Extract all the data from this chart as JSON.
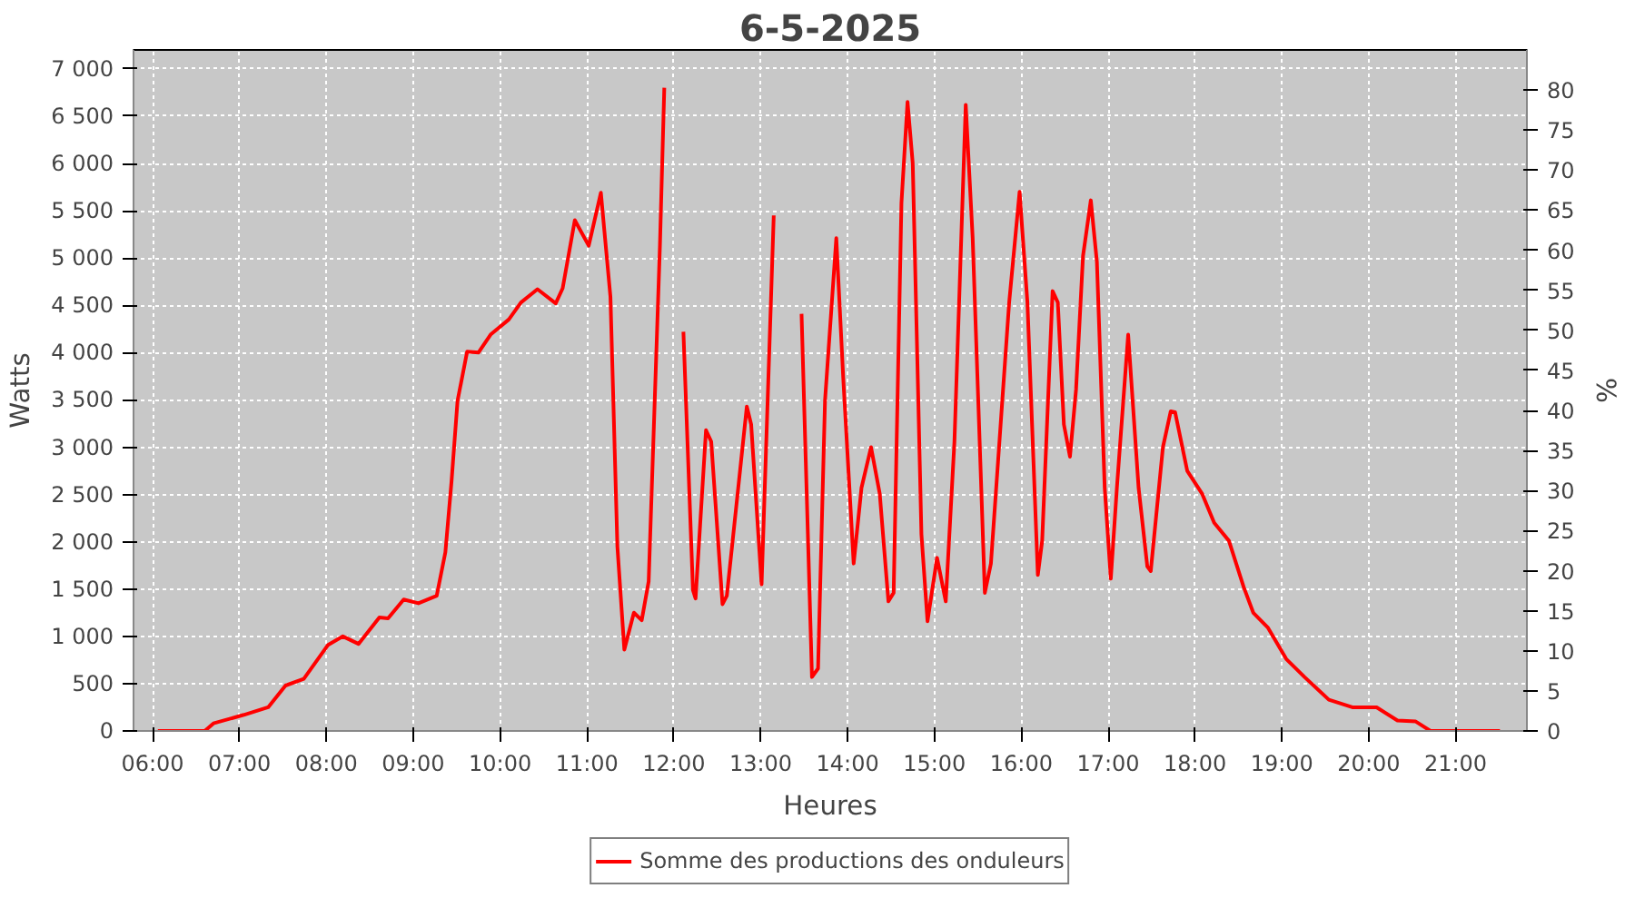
{
  "chart_data": {
    "type": "line",
    "title": "6-5-2025",
    "xlabel": "Heures",
    "ylabel": "Watts",
    "y2label": "%",
    "x": [
      6.06,
      6.6,
      6.7,
      7.05,
      7.33,
      7.53,
      7.74,
      8.02,
      8.19,
      8.37,
      8.61,
      8.71,
      8.89,
      9.06,
      9.27,
      9.37,
      9.44,
      9.51,
      9.62,
      9.75,
      9.89,
      10.1,
      10.24,
      10.43,
      10.64,
      10.72,
      10.86,
      11.02,
      11.16,
      11.27,
      11.35,
      11.43,
      11.54,
      11.63,
      11.71,
      11.84,
      11.89,
      11.94,
      12.03,
      12.11,
      12.22,
      12.25,
      12.37,
      12.43,
      12.56,
      12.61,
      12.84,
      12.89,
      13.01,
      13.15,
      13.22,
      13.35,
      13.47,
      13.59,
      13.66,
      13.74,
      13.87,
      13.95,
      14.07,
      14.16,
      14.27,
      14.37,
      14.47,
      14.53,
      14.62,
      14.69,
      14.75,
      14.85,
      14.92,
      15.03,
      15.13,
      15.23,
      15.36,
      15.44,
      15.58,
      15.65,
      15.86,
      15.98,
      16.07,
      16.19,
      16.24,
      16.36,
      16.42,
      16.49,
      16.56,
      16.63,
      16.71,
      16.8,
      16.87,
      16.96,
      17.03,
      17.1,
      17.23,
      17.35,
      17.45,
      17.49,
      17.63,
      17.72,
      17.77,
      17.91,
      18.08,
      18.22,
      18.39,
      18.56,
      18.67,
      18.84,
      19.05,
      19.26,
      19.54,
      19.81,
      20.09,
      20.33,
      20.54,
      20.71,
      21.51
    ],
    "series": [
      {
        "name": "Somme des productions des onduleurs",
        "color": "#ff0000",
        "values": [
          0,
          0,
          80,
          170,
          250,
          480,
          550,
          910,
          1000,
          920,
          1200,
          1190,
          1390,
          1350,
          1430,
          1890,
          2630,
          3490,
          4010,
          4000,
          4190,
          4350,
          4530,
          4670,
          4520,
          4680,
          5400,
          5130,
          5690,
          4590,
          1950,
          860,
          1250,
          1170,
          1580,
          5140,
          6800,
          null,
          null,
          4220,
          1490,
          1400,
          3180,
          3060,
          1340,
          1430,
          3430,
          3240,
          1550,
          5450,
          null,
          null,
          4410,
          570,
          660,
          3490,
          5210,
          3730,
          1770,
          2570,
          3000,
          2510,
          1370,
          1460,
          5580,
          6650,
          6000,
          2080,
          1160,
          1830,
          1370,
          3060,
          6620,
          5210,
          1460,
          1770,
          4530,
          5700,
          4530,
          1650,
          2010,
          4650,
          4530,
          3240,
          2900,
          3610,
          5020,
          5610,
          4960,
          2570,
          1610,
          2570,
          4190,
          2570,
          1740,
          1690,
          3000,
          3380,
          3370,
          2750,
          2510,
          2200,
          2010,
          1520,
          1250,
          1090,
          760,
          570,
          330,
          250,
          250,
          110,
          100,
          0,
          0
        ]
      }
    ],
    "xlim": [
      5.78,
      21.82
    ],
    "xticks": [
      {
        "value": 6,
        "label": "06:00"
      },
      {
        "value": 7,
        "label": "07:00"
      },
      {
        "value": 8,
        "label": "08:00"
      },
      {
        "value": 9,
        "label": "09:00"
      },
      {
        "value": 10,
        "label": "10:00"
      },
      {
        "value": 11,
        "label": "11:00"
      },
      {
        "value": 12,
        "label": "12:00"
      },
      {
        "value": 13,
        "label": "13:00"
      },
      {
        "value": 14,
        "label": "14:00"
      },
      {
        "value": 15,
        "label": "15:00"
      },
      {
        "value": 16,
        "label": "16:00"
      },
      {
        "value": 17,
        "label": "17:00"
      },
      {
        "value": 18,
        "label": "18:00"
      },
      {
        "value": 19,
        "label": "19:00"
      },
      {
        "value": 20,
        "label": "20:00"
      },
      {
        "value": 21,
        "label": "21:00"
      }
    ],
    "ylim": [
      0,
      7200
    ],
    "yticks": [
      0,
      500,
      {
        "value": 1000,
        "label": "1 000"
      },
      {
        "value": 1500,
        "label": "1 500"
      },
      {
        "value": 2000,
        "label": "2 000"
      },
      {
        "value": 2500,
        "label": "2 500"
      },
      {
        "value": 3000,
        "label": "3 000"
      },
      {
        "value": 3500,
        "label": "3 500"
      },
      {
        "value": 4000,
        "label": "4 000"
      },
      {
        "value": 4500,
        "label": "4 500"
      },
      {
        "value": 5000,
        "label": "5 000"
      },
      {
        "value": 5500,
        "label": "5 500"
      },
      {
        "value": 6000,
        "label": "6 000"
      },
      {
        "value": 6500,
        "label": "6 500"
      },
      {
        "value": 7000,
        "label": "7 000"
      }
    ],
    "y2lim": [
      0,
      85
    ],
    "y2ticks": [
      0,
      5,
      10,
      15,
      20,
      25,
      30,
      35,
      40,
      45,
      50,
      55,
      60,
      65,
      70,
      75,
      80
    ],
    "grid": true,
    "legend": "bottom",
    "marker": "none",
    "line_style": "solid"
  }
}
